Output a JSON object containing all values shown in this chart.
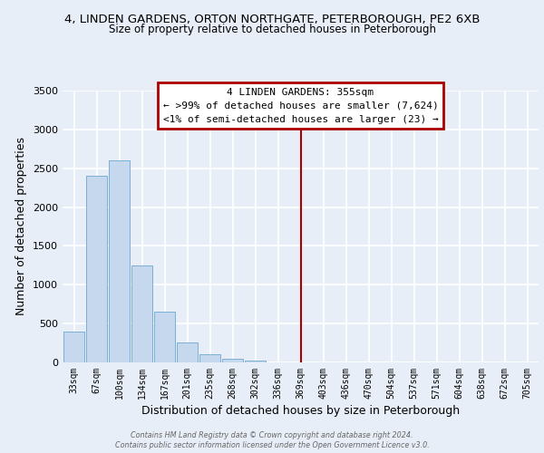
{
  "title_line1": "4, LINDEN GARDENS, ORTON NORTHGATE, PETERBOROUGH, PE2 6XB",
  "title_line2": "Size of property relative to detached houses in Peterborough",
  "xlabel": "Distribution of detached houses by size in Peterborough",
  "ylabel": "Number of detached properties",
  "categories": [
    "33sqm",
    "67sqm",
    "100sqm",
    "134sqm",
    "167sqm",
    "201sqm",
    "235sqm",
    "268sqm",
    "302sqm",
    "336sqm",
    "369sqm",
    "403sqm",
    "436sqm",
    "470sqm",
    "504sqm",
    "537sqm",
    "571sqm",
    "604sqm",
    "638sqm",
    "672sqm",
    "705sqm"
  ],
  "bar_heights": [
    400,
    2400,
    2600,
    1250,
    650,
    260,
    100,
    50,
    20,
    5,
    0,
    0,
    0,
    0,
    0,
    0,
    0,
    0,
    0,
    0,
    0
  ],
  "bar_color": "#c5d8ee",
  "bar_edge_color": "#7bafd4",
  "bg_color": "#e8eef7",
  "grid_color": "#ffffff",
  "annotation_line1": "4 LINDEN GARDENS: 355sqm",
  "annotation_line2": "← >99% of detached houses are smaller (7,624)",
  "annotation_line3": "<1% of semi-detached houses are larger (23) →",
  "annotation_box_color": "#ffffff",
  "annotation_border_color": "#aa0000",
  "vline_color": "#aa0000",
  "ylim_max": 3500,
  "yticks": [
    0,
    500,
    1000,
    1500,
    2000,
    2500,
    3000,
    3500
  ],
  "footer_line1": "Contains HM Land Registry data © Crown copyright and database right 2024.",
  "footer_line2": "Contains public sector information licensed under the Open Government Licence v3.0."
}
